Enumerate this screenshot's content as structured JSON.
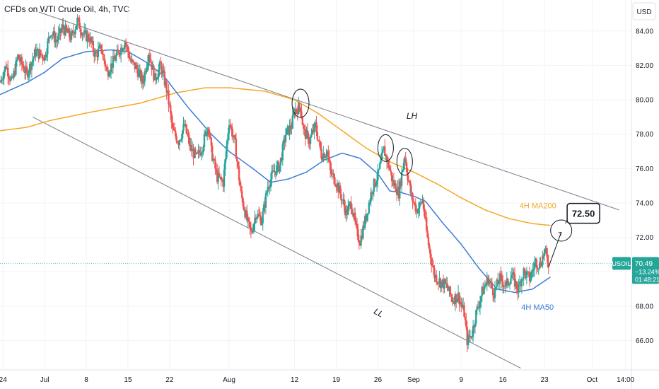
{
  "chart_data": {
    "type": "candlestick",
    "title": "CFDs on WTI Crude Oil, 4h, TVC",
    "currency": "USD",
    "y_ticks": [
      "66.00",
      "68.00",
      "70.00",
      "72.00",
      "74.00",
      "76.00",
      "78.00",
      "80.00",
      "82.00",
      "84.00"
    ],
    "ylim": [
      64.3,
      85.8
    ],
    "x_ticks": [
      {
        "label": "24",
        "day": -7
      },
      {
        "label": "Jul",
        "day": 0
      },
      {
        "label": "8",
        "day": 7
      },
      {
        "label": "15",
        "day": 14
      },
      {
        "label": "22",
        "day": 21
      },
      {
        "label": "Aug",
        "day": 31
      },
      {
        "label": "12",
        "day": 42
      },
      {
        "label": "19",
        "day": 49
      },
      {
        "label": "26",
        "day": 56
      },
      {
        "label": "Sep",
        "day": 62
      },
      {
        "label": "9",
        "day": 70
      },
      {
        "label": "16",
        "day": 77
      },
      {
        "label": "23",
        "day": 84
      },
      {
        "label": "Oct",
        "day": 92
      },
      {
        "label": "14:00",
        "day": 97.6
      }
    ],
    "xlim": [
      -7.5,
      98.6
    ],
    "price_anchors": [
      [
        -7.5,
        81.0
      ],
      [
        -6.5,
        82.0
      ],
      [
        -5.5,
        81.0
      ],
      [
        -4.5,
        82.5
      ],
      [
        -3,
        81.5
      ],
      [
        -1.5,
        82.8
      ],
      [
        0,
        82.5
      ],
      [
        1,
        84.0
      ],
      [
        2,
        83.4
      ],
      [
        3,
        84.2
      ],
      [
        4.5,
        83.6
      ],
      [
        5.5,
        84.6
      ],
      [
        6.5,
        83.8
      ],
      [
        7.5,
        83.6
      ],
      [
        8.5,
        82.6
      ],
      [
        9.5,
        83.0
      ],
      [
        10.5,
        81.6
      ],
      [
        11.5,
        82.2
      ],
      [
        12.5,
        82.8
      ],
      [
        13.5,
        83.4
      ],
      [
        14.5,
        82.2
      ],
      [
        15.5,
        81.8
      ],
      [
        16.5,
        81.0
      ],
      [
        17.5,
        82.8
      ],
      [
        18.5,
        81.2
      ],
      [
        19.5,
        82.0
      ],
      [
        20.5,
        80.6
      ],
      [
        21,
        79.5
      ],
      [
        21.5,
        78.2
      ],
      [
        22.5,
        77.6
      ],
      [
        23.5,
        78.5
      ],
      [
        24.5,
        77.2
      ],
      [
        25.5,
        76.6
      ],
      [
        26.5,
        77.3
      ],
      [
        27.5,
        78.6
      ],
      [
        28,
        77.0
      ],
      [
        29,
        75.5
      ],
      [
        30,
        75.2
      ],
      [
        31,
        78.8
      ],
      [
        32,
        77.4
      ],
      [
        33,
        74.5
      ],
      [
        34,
        73.0
      ],
      [
        34.7,
        72.2
      ],
      [
        35.5,
        73.4
      ],
      [
        36.5,
        73.0
      ],
      [
        37.5,
        75.0
      ],
      [
        38.5,
        75.8
      ],
      [
        39.5,
        76.2
      ],
      [
        40.5,
        78.0
      ],
      [
        41.5,
        78.5
      ],
      [
        42,
        79.4
      ],
      [
        43,
        79.6
      ],
      [
        43.5,
        78.2
      ],
      [
        44.5,
        77.6
      ],
      [
        45.5,
        78.5
      ],
      [
        46.5,
        76.8
      ],
      [
        47.5,
        77.0
      ],
      [
        48,
        75.8
      ],
      [
        49,
        75.2
      ],
      [
        50,
        74.2
      ],
      [
        50.7,
        73.4
      ],
      [
        51.5,
        74.0
      ],
      [
        52.5,
        72.2
      ],
      [
        53,
        71.8
      ],
      [
        54,
        73.2
      ],
      [
        55,
        74.8
      ],
      [
        56,
        75.6
      ],
      [
        57,
        77.1
      ],
      [
        57.8,
        76.2
      ],
      [
        58.5,
        75.2
      ],
      [
        59.5,
        74.6
      ],
      [
        60.5,
        76.8
      ],
      [
        61,
        75.6
      ],
      [
        61.6,
        74.4
      ],
      [
        62.5,
        73.6
      ],
      [
        63,
        73.8
      ],
      [
        63.5,
        74.2
      ],
      [
        64.3,
        72.0
      ],
      [
        64.8,
        71.0
      ],
      [
        65.5,
        69.8
      ],
      [
        66.5,
        69.4
      ],
      [
        67.5,
        69.2
      ],
      [
        68.5,
        68.4
      ],
      [
        69.5,
        68.6
      ],
      [
        70.5,
        67.6
      ],
      [
        71,
        66.0
      ],
      [
        71.8,
        66.4
      ],
      [
        72.5,
        67.6
      ],
      [
        73.5,
        68.8
      ],
      [
        74.5,
        69.6
      ],
      [
        75.5,
        68.8
      ],
      [
        76.5,
        69.6
      ],
      [
        77.5,
        69.2
      ],
      [
        78.5,
        69.8
      ],
      [
        79.5,
        69.0
      ],
      [
        80.5,
        70.0
      ],
      [
        81.5,
        69.6
      ],
      [
        82.5,
        70.6
      ],
      [
        83.2,
        70.4
      ],
      [
        84,
        71.2
      ],
      [
        84.7,
        70.5
      ]
    ],
    "ma200_anchors": [
      [
        -7.5,
        78.2
      ],
      [
        -3,
        78.4
      ],
      [
        1,
        78.8
      ],
      [
        8,
        79.3
      ],
      [
        16,
        79.8
      ],
      [
        22,
        80.4
      ],
      [
        27,
        80.7
      ],
      [
        31,
        80.7
      ],
      [
        37,
        80.5
      ],
      [
        42,
        80.0
      ],
      [
        46,
        79.2
      ],
      [
        50,
        78.2
      ],
      [
        54,
        77.2
      ],
      [
        58,
        76.4
      ],
      [
        62,
        75.8
      ],
      [
        66,
        75.1
      ],
      [
        70,
        74.3
      ],
      [
        74,
        73.6
      ],
      [
        78,
        73.1
      ],
      [
        82,
        72.8
      ],
      [
        85,
        72.7
      ]
    ],
    "ma50_anchors": [
      [
        -7.5,
        80.3
      ],
      [
        -3,
        81.0
      ],
      [
        0,
        81.6
      ],
      [
        3,
        82.4
      ],
      [
        7,
        82.8
      ],
      [
        11,
        82.9
      ],
      [
        14,
        82.8
      ],
      [
        17,
        82.2
      ],
      [
        20,
        81.4
      ],
      [
        24,
        79.6
      ],
      [
        28,
        78.0
      ],
      [
        31,
        77.0
      ],
      [
        35,
        76.0
      ],
      [
        38,
        75.2
      ],
      [
        41,
        75.4
      ],
      [
        44,
        75.8
      ],
      [
        47,
        76.5
      ],
      [
        50,
        76.9
      ],
      [
        53,
        76.6
      ],
      [
        56,
        75.7
      ],
      [
        58,
        74.7
      ],
      [
        60,
        74.6
      ],
      [
        62,
        74.4
      ],
      [
        64,
        74.1
      ],
      [
        67,
        72.8
      ],
      [
        70,
        71.6
      ],
      [
        73,
        70.2
      ],
      [
        76,
        69.0
      ],
      [
        79,
        68.8
      ],
      [
        82,
        69.0
      ],
      [
        85,
        69.7
      ]
    ],
    "trendline_lh": {
      "label": "LH",
      "points": [
        [
          -1,
          85.1
        ],
        [
          96.5,
          73.6
        ]
      ]
    },
    "trendline_ll": {
      "label": "LL",
      "points": [
        [
          -2,
          79.0
        ],
        [
          80,
          64.4
        ]
      ]
    },
    "ma200_label": "4H MA200",
    "ma50_label": "4H MA50",
    "target_label": "72.50",
    "last_symbol": "USOIL",
    "last_price": "70.49",
    "last_change": "−13.24%",
    "last_countdown": "01:48:21",
    "colors": {
      "up": "#26a69a",
      "down": "#ef5350",
      "ma200": "#f5a623",
      "ma50": "#3d7bd6",
      "trend": "#787b86",
      "grid": "#f0f3fa",
      "label_bg": "#26a69a"
    }
  }
}
